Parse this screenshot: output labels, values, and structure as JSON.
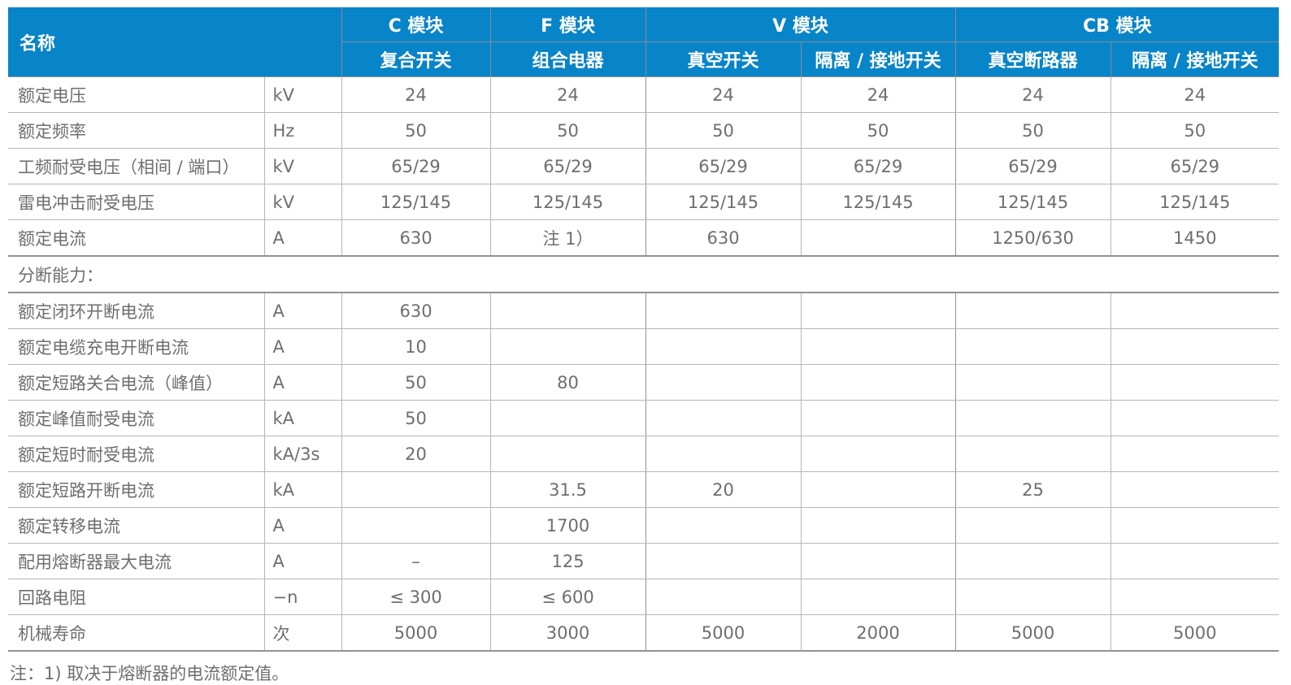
{
  "colors": {
    "header_bg": "#0884c9",
    "header_text": "#ffffff",
    "body_text": "#6d6e71",
    "grid_line": "#b4b6b8"
  },
  "table": {
    "header": {
      "name_label": "名称",
      "groups": [
        {
          "label": "C 模块",
          "subs": [
            "复合开关"
          ]
        },
        {
          "label": "F 模块",
          "subs": [
            "组合电器"
          ]
        },
        {
          "label": "V 模块",
          "subs": [
            "真空开关",
            "隔离 / 接地开关"
          ]
        },
        {
          "label": "CB 模块",
          "subs": [
            "真空断路器",
            "隔离 / 接地开关"
          ]
        }
      ]
    },
    "rows": [
      {
        "name": "额定电压",
        "unit": "kV",
        "values": [
          "24",
          "24",
          "24",
          "24",
          "24",
          "24"
        ]
      },
      {
        "name": "额定频率",
        "unit": "Hz",
        "values": [
          "50",
          "50",
          "50",
          "50",
          "50",
          "50"
        ]
      },
      {
        "name": "工频耐受电压（相间 / 端口）",
        "unit": "kV",
        "values": [
          "65/29",
          "65/29",
          "65/29",
          "65/29",
          "65/29",
          "65/29"
        ]
      },
      {
        "name": "雷电冲击耐受电压",
        "unit": "kV",
        "values": [
          "125/145",
          "125/145",
          "125/145",
          "125/145",
          "125/145",
          "125/145"
        ]
      },
      {
        "name": "额定电流",
        "unit": "A",
        "values": [
          "630",
          "注 1）",
          "630",
          "",
          "1250/630",
          "1450"
        ]
      },
      {
        "name": "分断能力：",
        "section": true
      },
      {
        "name": "额定闭环开断电流",
        "unit": "A",
        "values": [
          "630",
          "",
          "",
          "",
          "",
          ""
        ]
      },
      {
        "name": "额定电缆充电开断电流",
        "unit": "A",
        "values": [
          "10",
          "",
          "",
          "",
          "",
          ""
        ]
      },
      {
        "name": "额定短路关合电流（峰值）",
        "unit": "A",
        "values": [
          "50",
          "80",
          "",
          "",
          "",
          ""
        ]
      },
      {
        "name": "额定峰值耐受电流",
        "unit": "kA",
        "values": [
          "50",
          "",
          "",
          "",
          "",
          ""
        ]
      },
      {
        "name": "额定短时耐受电流",
        "unit": "kA/3s",
        "values": [
          "20",
          "",
          "",
          "",
          "",
          ""
        ]
      },
      {
        "name": "额定短路开断电流",
        "unit": "kA",
        "values": [
          "",
          "31.5",
          "20",
          "",
          "25",
          ""
        ]
      },
      {
        "name": "额定转移电流",
        "unit": "A",
        "values": [
          "",
          "1700",
          "",
          "",
          "",
          ""
        ]
      },
      {
        "name": "配用熔断器最大电流",
        "unit": "A",
        "values": [
          "–",
          "125",
          "",
          "",
          "",
          ""
        ]
      },
      {
        "name": "回路电阻",
        "unit": "−n",
        "values": [
          "≤ 300",
          "≤ 600",
          "",
          "",
          "",
          ""
        ]
      },
      {
        "name": "机械寿命",
        "unit": "次",
        "values": [
          "5000",
          "3000",
          "5000",
          "2000",
          "5000",
          "5000"
        ]
      }
    ],
    "footnote": "注：1) 取决于熔断器的电流额定值。"
  }
}
